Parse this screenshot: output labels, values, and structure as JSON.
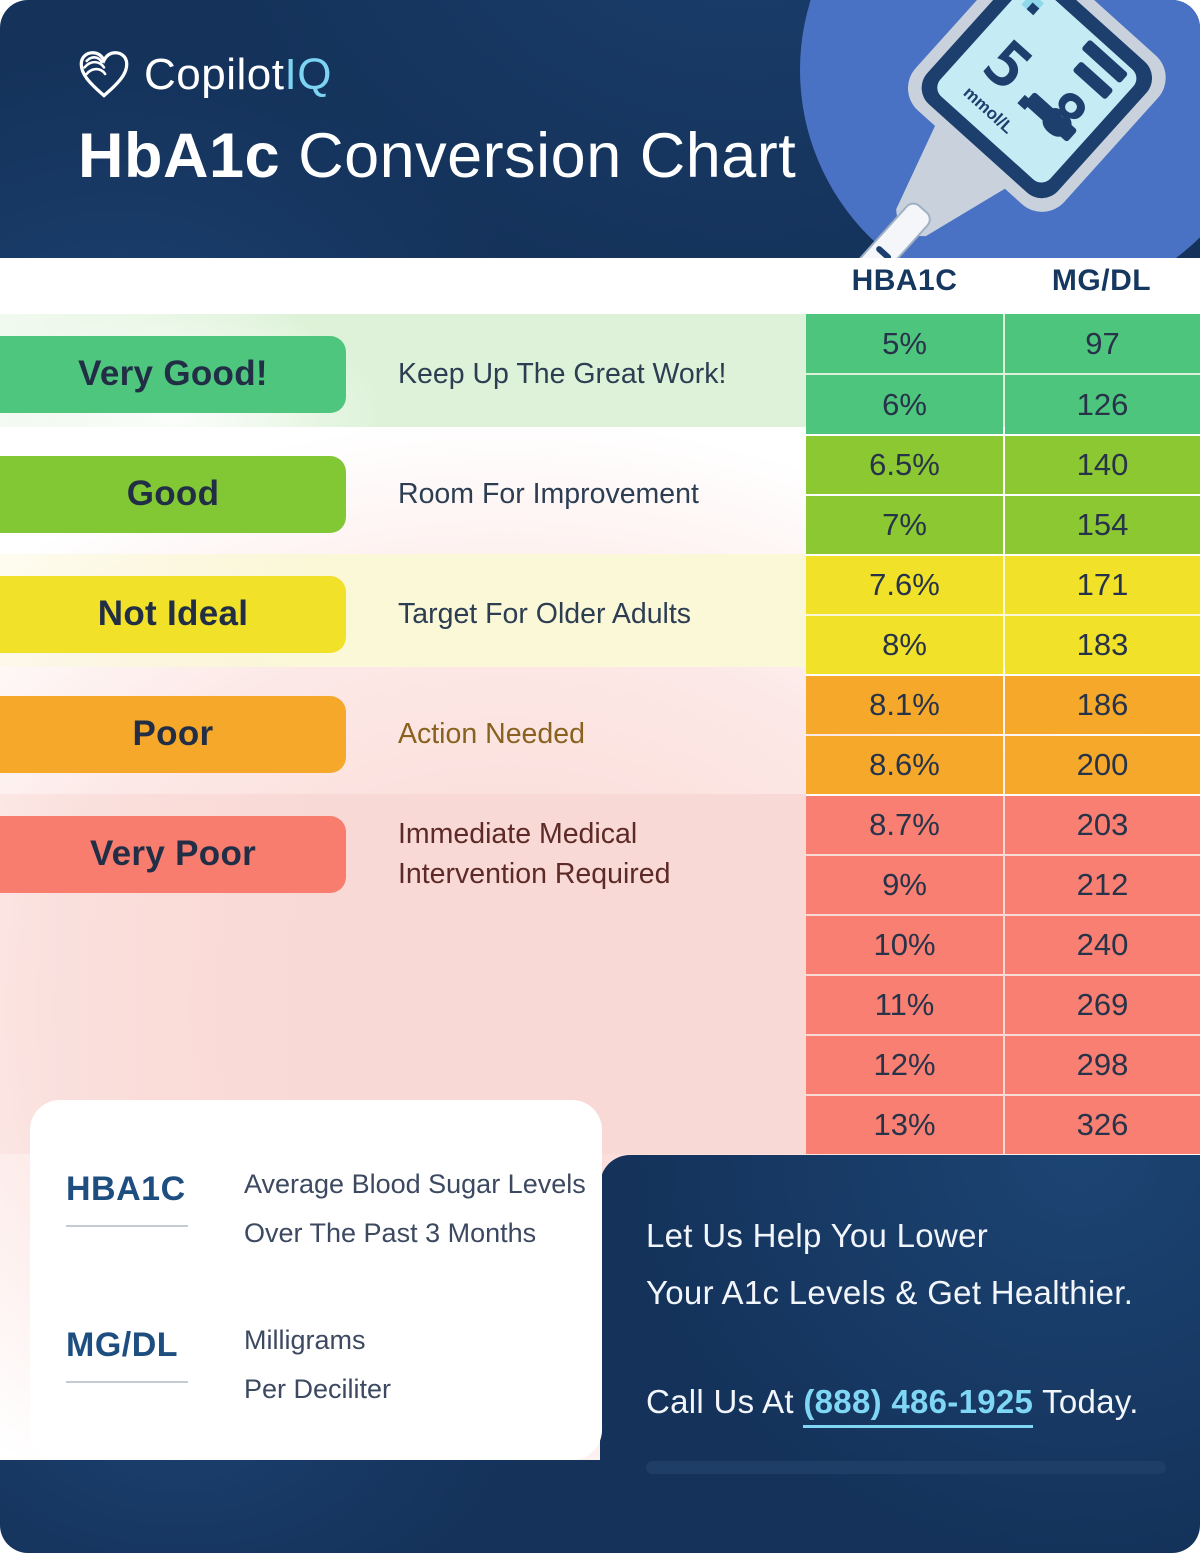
{
  "header": {
    "logo": {
      "brand": "Copilot",
      "brand_suffix": "IQ"
    },
    "title_bold": "HbA1c",
    "title_rest": " Conversion Chart",
    "meter": {
      "reading": "5.8",
      "unit": "mmol/L"
    }
  },
  "table": {
    "col1_header": "HBA1C",
    "col2_header": "MG/DL",
    "groups": [
      {
        "label": "Very Good!",
        "description": "Keep Up The Great Work!",
        "badge_color": "#4fc67e",
        "cell_color": "#4ec57d",
        "band_tint": "#ddf2d8",
        "desc_color": "#2d3e53",
        "rows": [
          [
            "5%",
            "97"
          ],
          [
            "6%",
            "126"
          ]
        ]
      },
      {
        "label": "Good",
        "description": "Room For Improvement",
        "badge_color": "#82c835",
        "cell_color": "#8bc832",
        "band_tint": "",
        "desc_color": "#2d3e53",
        "rows": [
          [
            "6.5%",
            "140"
          ],
          [
            "7%",
            "154"
          ]
        ]
      },
      {
        "label": "Not Ideal",
        "description": "Target For Older Adults",
        "badge_color": "#f1e129",
        "cell_color": "#f1e129",
        "band_tint": "#fbf8d8",
        "desc_color": "#2d3e53",
        "rows": [
          [
            "7.6%",
            "171"
          ],
          [
            "8%",
            "183"
          ]
        ]
      },
      {
        "label": "Poor",
        "description": "Action Needed",
        "badge_color": "#f6a82a",
        "cell_color": "#f6a82a",
        "band_tint": "",
        "desc_color": "#8a6220",
        "rows": [
          [
            "8.1%",
            "186"
          ],
          [
            "8.6%",
            "200"
          ]
        ]
      },
      {
        "label": "Very Poor",
        "description": "Immediate Medical\nIntervention Required",
        "badge_color": "#f87d6f",
        "cell_color": "#f87f72",
        "band_tint": "#f9d9d5",
        "desc_color": "#5e2a28",
        "rows": [
          [
            "8.7%",
            "203"
          ],
          [
            "9%",
            "212"
          ],
          [
            "10%",
            "240"
          ],
          [
            "11%",
            "269"
          ],
          [
            "12%",
            "298"
          ],
          [
            "13%",
            "326"
          ]
        ]
      }
    ]
  },
  "legend": [
    {
      "term": "HBA1C",
      "definition_lines": [
        "Average Blood Sugar Levels",
        "Over The Past 3 Months"
      ]
    },
    {
      "term": "MG/DL",
      "definition_lines": [
        "Milligrams",
        "Per Deciliter"
      ]
    }
  ],
  "footer": {
    "headline_line1": "Let Us Help You Lower",
    "headline_line2": "Your A1c Levels & Get Healthier.",
    "call_prefix": "Call Us At ",
    "phone": "(888) 486-1925",
    "call_suffix": " Today."
  },
  "colors": {
    "header_navy": "#14325a",
    "meter_circle_blue": "#4a72c4",
    "phone_accent": "#7fd7f5",
    "legend_term_blue": "#1e4d80"
  },
  "chart_data": {
    "type": "table",
    "title": "HbA1c Conversion Chart",
    "columns": [
      "HBA1C",
      "MG/DL"
    ],
    "rows": [
      [
        "5%",
        97
      ],
      [
        "6%",
        126
      ],
      [
        "6.5%",
        140
      ],
      [
        "7%",
        154
      ],
      [
        "7.6%",
        171
      ],
      [
        "8%",
        183
      ],
      [
        "8.1%",
        186
      ],
      [
        "8.6%",
        200
      ],
      [
        "8.7%",
        203
      ],
      [
        "9%",
        212
      ],
      [
        "10%",
        240
      ],
      [
        "11%",
        269
      ],
      [
        "12%",
        298
      ],
      [
        "13%",
        326
      ]
    ],
    "categories": [
      {
        "label": "Very Good!",
        "note": "Keep Up The Great Work!",
        "hba1c_rows": [
          "5%",
          "6%"
        ]
      },
      {
        "label": "Good",
        "note": "Room For Improvement",
        "hba1c_rows": [
          "6.5%",
          "7%"
        ]
      },
      {
        "label": "Not Ideal",
        "note": "Target For Older Adults",
        "hba1c_rows": [
          "7.6%",
          "8%"
        ]
      },
      {
        "label": "Poor",
        "note": "Action Needed",
        "hba1c_rows": [
          "8.1%",
          "8.6%"
        ]
      },
      {
        "label": "Very Poor",
        "note": "Immediate Medical Intervention Required",
        "hba1c_rows": [
          "8.7%",
          "9%",
          "10%",
          "11%",
          "12%",
          "13%"
        ]
      }
    ]
  }
}
